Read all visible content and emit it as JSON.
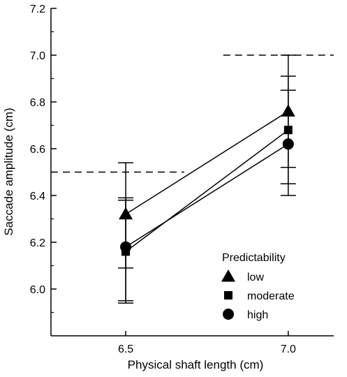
{
  "chart_data": {
    "type": "line",
    "xlabel": "Physical shaft length (cm)",
    "ylabel": "Saccade amplitude (cm)",
    "x": [
      6.5,
      7.0
    ],
    "x_tick_labels": [
      "6.5",
      "7.0"
    ],
    "xlim": [
      6.27,
      7.14
    ],
    "ylim": [
      5.8,
      7.2
    ],
    "y_ticks": [
      6.0,
      6.2,
      6.4,
      6.6,
      6.8,
      7.0,
      7.2
    ],
    "y_tick_labels": [
      "6.0",
      "6.2",
      "6.4",
      "6.6",
      "6.8",
      "7.0",
      "7.2"
    ],
    "legend_title": "Predictability",
    "legend_position": "bottom-right",
    "series": [
      {
        "name": "low",
        "marker": "triangle",
        "values": [
          6.32,
          6.76
        ],
        "error_low": [
          5.95,
          6.52
        ],
        "error_high": [
          6.54,
          7.0
        ]
      },
      {
        "name": "moderate",
        "marker": "square",
        "values": [
          6.16,
          6.68
        ],
        "error_low": [
          5.94,
          6.45
        ],
        "error_high": [
          6.39,
          6.91
        ]
      },
      {
        "name": "high",
        "marker": "circle",
        "values": [
          6.18,
          6.62
        ],
        "error_low": [
          6.09,
          6.4
        ],
        "error_high": [
          6.38,
          6.85
        ]
      }
    ],
    "reference_lines": [
      {
        "y": 6.5,
        "x_range": [
          6.27,
          6.68
        ],
        "style": "dashed"
      },
      {
        "y": 7.0,
        "x_range": [
          6.8,
          7.14
        ],
        "style": "dashed"
      }
    ],
    "grid": false,
    "colors": {
      "marks": "#000000",
      "background": "#ffffff"
    }
  }
}
